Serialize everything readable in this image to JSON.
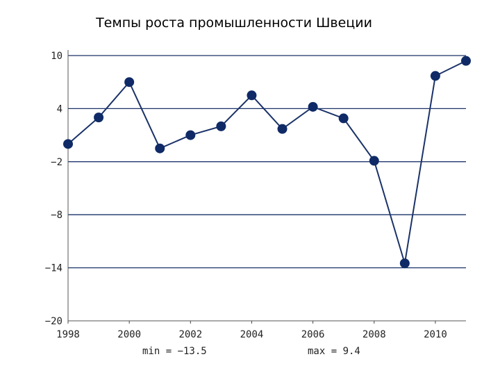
{
  "chart_data": {
    "type": "line",
    "title": "Темпы роста промышленности Швеции",
    "xlabel": "",
    "ylabel": "",
    "x": [
      1998,
      1999,
      2000,
      2001,
      2002,
      2003,
      2004,
      2005,
      2006,
      2007,
      2008,
      2009,
      2010,
      2011
    ],
    "series": [
      {
        "values": [
          0.0,
          3.0,
          7.0,
          -0.5,
          1.0,
          2.0,
          5.5,
          1.7,
          4.2,
          2.9,
          -1.9,
          -13.5,
          7.7,
          9.4
        ]
      }
    ],
    "xticks": [
      "1998",
      "2000",
      "2002",
      "2004",
      "2006",
      "2008",
      "2010"
    ],
    "yticks": [
      "10",
      "4",
      "−2",
      "−8",
      "−14",
      "−20"
    ],
    "ylim": [
      -20,
      10
    ],
    "xlim": [
      1998,
      2011
    ],
    "grid": true,
    "line_color": "#1a3268",
    "marker_color": "#0f2a66",
    "min_label": "min = −13.5",
    "max_label": "max = 9.4"
  }
}
